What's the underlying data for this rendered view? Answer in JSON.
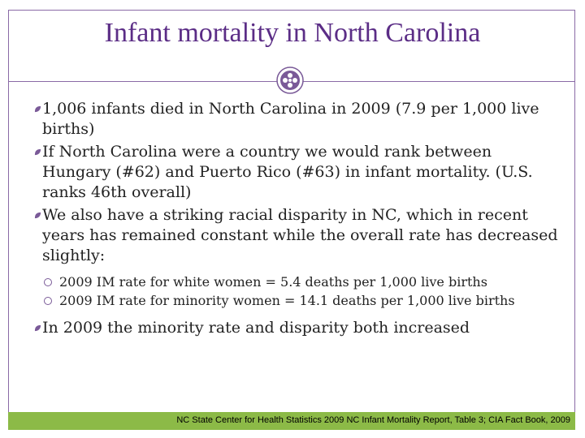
{
  "slide": {
    "title": "Infant mortality in North Carolina",
    "bullets": [
      {
        "text": "1,006 infants died in North Carolina in 2009 (7.9 per 1,000 live births)"
      },
      {
        "text": "If North Carolina were a country we would rank between Hungary (#62) and Puerto Rico (#63) in infant mortality. (U.S. ranks 46th overall)"
      },
      {
        "text": "We also have a striking racial disparity in NC, which in recent years has remained constant while the overall rate has decreased slightly:"
      }
    ],
    "sub_bullets": [
      {
        "text": "2009 IM rate for white women = 5.4 deaths per 1,000 live births"
      },
      {
        "text": "2009 IM rate for minority women = 14.1 deaths per 1,000 live births"
      }
    ],
    "last_bullet": {
      "text": "In 2009 the minority rate and disparity both increased"
    },
    "footer": "NC State Center for Health Statistics 2009 NC Infant Mortality Report, Table 3; CIA Fact Book, 2009",
    "colors": {
      "title": "#5b2d86",
      "frame": "#8a6aa6",
      "footer_bar": "#8cba47",
      "bullet": "#7a5a98"
    },
    "icons": {
      "emblem": "ornament-emblem-icon",
      "bullet": "leaf-bullet-icon",
      "sub_bullet": "circle-bullet-icon"
    }
  }
}
